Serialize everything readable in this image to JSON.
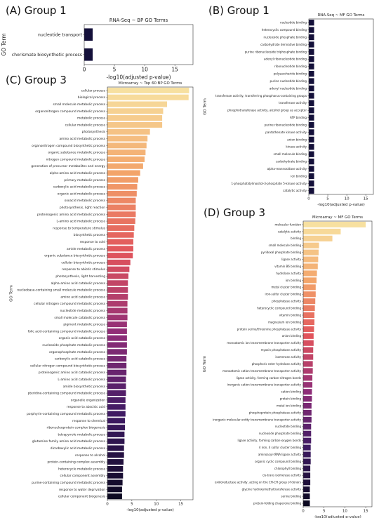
{
  "chart_data": [
    {
      "panel": "(A) Group 1",
      "type": "bar",
      "orientation": "horizontal",
      "title": "RNA-Seq ~ BP GO Terms",
      "xlabel": "-log10(adjusted p-value)",
      "ylabel": "GO Term",
      "xlim": [
        0,
        18
      ],
      "xticks": [
        "0",
        "5",
        "10",
        "15"
      ],
      "grid": false,
      "categories": [
        "nucleotide transport",
        "chorismate biosynthetic process"
      ],
      "values": [
        1.4,
        1.4
      ],
      "colors": [
        "#14103a",
        "#14103a"
      ]
    },
    {
      "panel": "(B) Group 1",
      "type": "bar",
      "orientation": "horizontal",
      "title": "RNA-Seq ~ MF GO Terms",
      "xlabel": "-log10(adjusted p-value)",
      "ylabel": "GO Term",
      "xlim": [
        0,
        17
      ],
      "xticks": [
        "0",
        "5",
        "10",
        "15"
      ],
      "grid": false,
      "categories": [
        "nucleotide binding",
        "heterocyclic compound binding",
        "nucleoside phosphate binding",
        "carbohydrate derivative binding",
        "purine ribonucleoside triphosphate binding",
        "adenyl ribonucleotide binding",
        "ribonucleotide binding",
        "polysaccharide binding",
        "purine nucleotide binding",
        "adenyl nucleotide binding",
        "transferase activity, transferring phosphorus-containing groups",
        "transferase activity",
        "phosphotransferase activity, alcohol group as acceptor",
        "ATP binding",
        "purine ribonucleotide binding",
        "pantothenate kinase activity",
        "anion binding",
        "kinase activity",
        "small molecule binding",
        "carbohydrate binding",
        "alpha-mannosidase activity",
        "ion binding",
        "1-phosphatidylinositol-3-phosphate 5-kinase activity",
        "catalytic activity"
      ],
      "values": [
        1.4,
        1.4,
        1.4,
        1.4,
        1.4,
        1.4,
        1.4,
        1.4,
        1.4,
        1.4,
        1.4,
        1.4,
        1.4,
        1.4,
        1.4,
        1.4,
        1.4,
        1.4,
        1.4,
        1.4,
        1.4,
        1.4,
        1.4,
        1.4
      ],
      "colors": [
        "#14103a"
      ]
    },
    {
      "panel": "(C) Group 3",
      "type": "bar",
      "orientation": "horizontal",
      "title": "Microarray ~ Top 60 BP GO Terms",
      "xlabel": "-log10(adjusted p-value)",
      "ylabel": "GO Term",
      "xlim": [
        0,
        17.5
      ],
      "xticks": [
        "0",
        "5",
        "10",
        "15"
      ],
      "grid": false,
      "categories": [
        "cellular process",
        "biological process",
        "small molecule metabolic process",
        "organonitrogen compound metabolic process",
        "metabolic process",
        "cellular metabolic process",
        "photosynthesis",
        "amino acid metabolic process",
        "organonitrogen compound biosynthetic process",
        "organic substance metabolic process",
        "nitrogen compound metabolic process",
        "generation of precursor metabolites and energy",
        "alpha-amino acid metabolic process",
        "primary metabolic process",
        "carboxylic acid metabolic process",
        "organic acid metabolic process",
        "oxoacid metabolic process",
        "photosynthesis, light reaction",
        "proteinogenic amino acid metabolic process",
        "L-amino acid metabolic process",
        "response to temperature stimulus",
        "biosynthetic process",
        "response to cold",
        "amide metabolic process",
        "organic substance biosynthetic process",
        "cellular biosynthetic process",
        "response to abiotic stimulus",
        "photosynthesis, light harvesting",
        "alpha-amino acid catabolic process",
        "nucleobase-containing small molecule metabolic process",
        "amino acid catabolic process",
        "cellular nitrogen compound metabolic process",
        "nucleotide metabolic process",
        "small molecule catabolic process",
        "pigment metabolic process",
        "folic acid-containing compound metabolic process",
        "organic acid catabolic process",
        "nucleoside phosphate metabolic process",
        "organophosphate metabolic process",
        "carboxylic acid catabolic process",
        "cellular nitrogen compound biosynthetic process",
        "proteinogenic amino acid catabolic process",
        "L-amino acid catabolic process",
        "amide biosynthetic process",
        "pteridine-containing compound metabolic process",
        "organelle organization",
        "response to abscisic acid",
        "porphyrin-containing compound metabolic process",
        "response to chemical",
        "ribonucleoprotein complex biogenesis",
        "tetrapyrrole metabolic process",
        "glutamine family amino acid metabolic process",
        "dicarboxylic acid metabolic process",
        "response to alcohol",
        "protein-containing complex assembly",
        "heterocycle metabolic process",
        "cellular component assembly",
        "purine-containing compound metabolic process",
        "response to water deprivation",
        "cellular component biogenesis"
      ],
      "values": [
        16.7,
        16.6,
        12.2,
        11.4,
        11.2,
        11.2,
        8.7,
        8.2,
        8.0,
        7.8,
        7.6,
        7.3,
        6.7,
        6.3,
        6.1,
        6.0,
        5.8,
        5.8,
        5.8,
        5.7,
        5.5,
        5.4,
        5.3,
        5.3,
        5.2,
        4.7,
        4.5,
        4.3,
        4.2,
        4.2,
        4.2,
        4.1,
        4.1,
        4.1,
        4.0,
        4.0,
        4.0,
        4.0,
        4.0,
        3.9,
        3.9,
        3.9,
        3.8,
        3.8,
        3.8,
        3.7,
        3.7,
        3.7,
        3.6,
        3.6,
        3.5,
        3.5,
        3.4,
        3.4,
        3.3,
        3.2,
        3.2,
        3.1,
        3.0,
        3.0
      ],
      "colors": [
        "#f7e0a0",
        "#f3a56a",
        "#e1545c",
        "#8e2d78",
        "#3e1a63",
        "#0d0a22"
      ]
    },
    {
      "panel": "(D) Group 3",
      "type": "bar",
      "orientation": "horizontal",
      "title": "Microarray ~ MF GO Terms",
      "xlabel": "-log10(adjusted p-value)",
      "ylabel": "GO Term",
      "xlim": [
        0,
        16.5
      ],
      "xticks": [
        "0",
        "5",
        "10",
        "15"
      ],
      "grid": false,
      "categories": [
        "molecular function",
        "catalytic activity",
        "binding",
        "small molecule binding",
        "pyridoxal phosphate binding",
        "ligase activity",
        "vitamin B6 binding",
        "hydrolase activity",
        "ion binding",
        "metal cluster binding",
        "iron-sulfur cluster binding",
        "phosphatase activity",
        "heterocyclic compound binding",
        "vitamin binding",
        "magnesium ion binding",
        "protein serine/threonine phosphatase activity",
        "anion binding",
        "monoatomic ion transmembrane transporter activity",
        "myosin phosphatase activity",
        "isomerase activity",
        "phosphoric ester hydrolase activity",
        "monoatomic cation transmembrane transporter activity",
        "ligase activity, forming carbon-nitrogen bonds",
        "inorganic cation transmembrane transporter activity",
        "cation binding",
        "protein binding",
        "metal ion binding",
        "phosphoprotein phosphatase activity",
        "inorganic molecular entity transmembrane transporter activity",
        "nucleotide binding",
        "nucleoside phosphate binding",
        "ligase activity, forming carbon-oxygen bonds",
        "4 iron, 4 sulfur cluster binding",
        "aminoacyl-tRNA ligase activity",
        "organic cyclic compound binding",
        "chlorophyll binding",
        "cis-trans isomerase activity",
        "oxidoreductase activity, acting on the CH-CH group of donors",
        "glycine hydroxymethyltransferase activity",
        "serine binding",
        "protein-folding chaperone binding"
      ],
      "values": [
        15.0,
        9.0,
        7.0,
        3.8,
        3.7,
        3.6,
        3.5,
        3.3,
        3.2,
        3.0,
        3.0,
        2.9,
        2.8,
        2.7,
        2.7,
        2.6,
        2.5,
        2.5,
        2.4,
        2.4,
        2.3,
        2.3,
        2.2,
        2.2,
        2.1,
        2.1,
        2.0,
        2.0,
        2.0,
        1.9,
        1.9,
        1.9,
        1.8,
        1.8,
        1.8,
        1.7,
        1.7,
        1.7,
        1.6,
        1.6,
        1.6
      ],
      "colors": [
        "#f7e0a0",
        "#f3a56a",
        "#e1545c",
        "#8e2d78",
        "#3e1a63",
        "#0d0a22"
      ]
    }
  ]
}
